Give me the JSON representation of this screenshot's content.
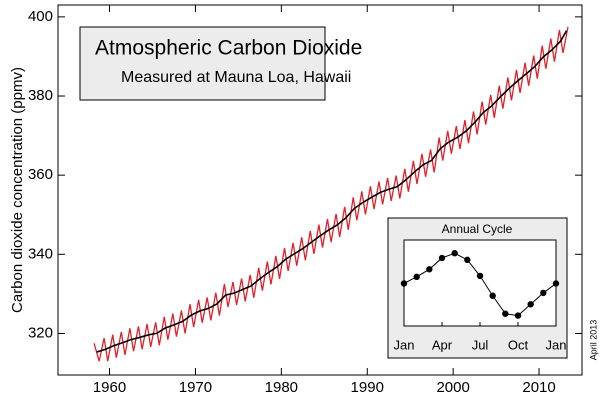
{
  "chart_data": [
    {
      "type": "line",
      "title": "Atmospheric Carbon Dioxide",
      "subtitle": "Measured at Mauna Loa, Hawaii",
      "y_label": "Carbon dioxide concentration (ppmv)",
      "annotation": "April 2013",
      "xlim": [
        1954,
        2015
      ],
      "xticks": [
        1960,
        1970,
        1980,
        1990,
        2000,
        2010
      ],
      "ylim": [
        309.5,
        403
      ],
      "yticks": [
        320,
        340,
        360,
        380,
        400
      ],
      "series": [
        {
          "color": "#e0202a",
          "x": [
            1958.2,
            1958.79,
            1959.37,
            1959.79,
            1960.37,
            1960.79,
            1961.37,
            1961.79,
            1962.37,
            1962.79,
            1963.37,
            1963.79,
            1964.37,
            1964.79,
            1965.37,
            1965.79,
            1966.37,
            1966.79,
            1967.37,
            1967.79,
            1968.37,
            1968.79,
            1969.37,
            1969.79,
            1970.37,
            1970.79,
            1971.37,
            1971.79,
            1972.37,
            1972.79,
            1973.37,
            1973.79,
            1974.37,
            1974.79,
            1975.37,
            1975.79,
            1976.37,
            1976.79,
            1977.37,
            1977.79,
            1978.37,
            1978.79,
            1979.37,
            1979.79,
            1980.37,
            1980.79,
            1981.37,
            1981.79,
            1982.37,
            1982.79,
            1983.37,
            1983.79,
            1984.37,
            1984.79,
            1985.37,
            1985.79,
            1986.37,
            1986.79,
            1987.37,
            1987.79,
            1988.37,
            1988.79,
            1989.37,
            1989.79,
            1990.37,
            1990.79,
            1991.37,
            1991.79,
            1992.37,
            1992.79,
            1993.37,
            1993.79,
            1994.37,
            1994.79,
            1995.37,
            1995.79,
            1996.37,
            1996.79,
            1997.37,
            1997.79,
            1998.37,
            1998.79,
            1999.37,
            1999.79,
            2000.37,
            2000.79,
            2001.37,
            2001.79,
            2002.37,
            2002.79,
            2003.37,
            2003.79,
            2004.37,
            2004.79,
            2005.37,
            2005.79,
            2006.37,
            2006.79,
            2007.37,
            2007.79,
            2008.37,
            2008.79,
            2009.37,
            2009.79,
            2010.37,
            2010.79,
            2011.37,
            2011.79,
            2012.37,
            2012.79,
            2013.37
          ],
          "values": [
            317.5,
            313.0,
            318.8,
            313.0,
            319.7,
            313.9,
            320.4,
            314.6,
            321.3,
            315.5,
            321.8,
            316.0,
            322.4,
            316.6,
            322.8,
            317.0,
            324.2,
            318.4,
            325.0,
            319.2,
            325.8,
            320.0,
            327.4,
            321.6,
            328.5,
            322.7,
            329.1,
            323.3,
            330.3,
            324.5,
            332.5,
            326.7,
            333.0,
            327.2,
            333.9,
            328.1,
            334.8,
            329.0,
            336.6,
            330.8,
            338.2,
            332.4,
            339.6,
            333.8,
            341.6,
            335.8,
            342.9,
            337.1,
            344.3,
            338.5,
            345.9,
            340.1,
            347.5,
            341.7,
            348.9,
            343.1,
            350.2,
            344.4,
            352.0,
            346.2,
            354.4,
            348.6,
            355.9,
            350.1,
            357.2,
            351.4,
            358.4,
            352.6,
            359.3,
            353.5,
            359.9,
            354.1,
            361.6,
            355.8,
            363.6,
            357.8,
            365.4,
            359.6,
            366.5,
            360.7,
            369.5,
            363.7,
            371.2,
            365.4,
            372.4,
            366.6,
            373.9,
            368.1,
            376.1,
            370.3,
            378.6,
            372.8,
            380.3,
            374.5,
            382.6,
            376.8,
            384.7,
            378.9,
            386.6,
            380.8,
            388.4,
            382.6,
            390.2,
            384.4,
            392.7,
            386.9,
            394.5,
            388.7,
            396.7,
            390.9,
            397.5
          ]
        },
        {
          "color": "#000000",
          "x": [
            1958.5,
            1959.5,
            1960.5,
            1961.5,
            1962.5,
            1963.5,
            1964.5,
            1965.5,
            1966.5,
            1967.5,
            1968.5,
            1969.5,
            1970.5,
            1971.5,
            1972.5,
            1973.5,
            1974.5,
            1975.5,
            1976.5,
            1977.5,
            1978.5,
            1979.5,
            1980.5,
            1981.5,
            1982.5,
            1983.5,
            1984.5,
            1985.5,
            1986.5,
            1987.5,
            1988.5,
            1989.5,
            1990.5,
            1991.5,
            1992.5,
            1993.5,
            1994.5,
            1995.5,
            1996.5,
            1997.5,
            1998.5,
            1999.5,
            2000.5,
            2001.5,
            2002.5,
            2003.5,
            2004.5,
            2005.5,
            2006.5,
            2007.5,
            2008.5,
            2009.5,
            2010.5,
            2011.5,
            2012.5,
            2013.2
          ],
          "values": [
            315.3,
            315.97,
            316.91,
            317.64,
            318.45,
            318.99,
            319.62,
            320.04,
            321.38,
            322.16,
            323.04,
            324.62,
            325.68,
            326.32,
            327.45,
            329.68,
            330.18,
            331.11,
            332.04,
            333.83,
            335.4,
            336.84,
            338.75,
            340.11,
            341.45,
            343.05,
            344.65,
            346.12,
            347.42,
            349.19,
            351.57,
            353.12,
            354.39,
            355.61,
            356.45,
            357.1,
            358.83,
            360.82,
            362.61,
            363.73,
            366.7,
            368.38,
            369.55,
            371.14,
            373.28,
            375.8,
            377.52,
            379.8,
            381.9,
            383.79,
            385.6,
            387.43,
            389.9,
            391.65,
            393.85,
            396.52
          ]
        }
      ]
    },
    {
      "type": "line",
      "title": "Annual Cycle",
      "categories": [
        "Jan",
        null,
        null,
        "Apr",
        null,
        null,
        "Jul",
        null,
        null,
        "Oct",
        null,
        null,
        "Jan"
      ],
      "values": [
        0,
        0.7,
        1.5,
        2.7,
        3.2,
        2.5,
        0.8,
        -1.3,
        -3.2,
        -3.4,
        -2.2,
        -1.0,
        0
      ],
      "ylim": [
        -4.5,
        4.6
      ],
      "color": "#000000"
    }
  ]
}
